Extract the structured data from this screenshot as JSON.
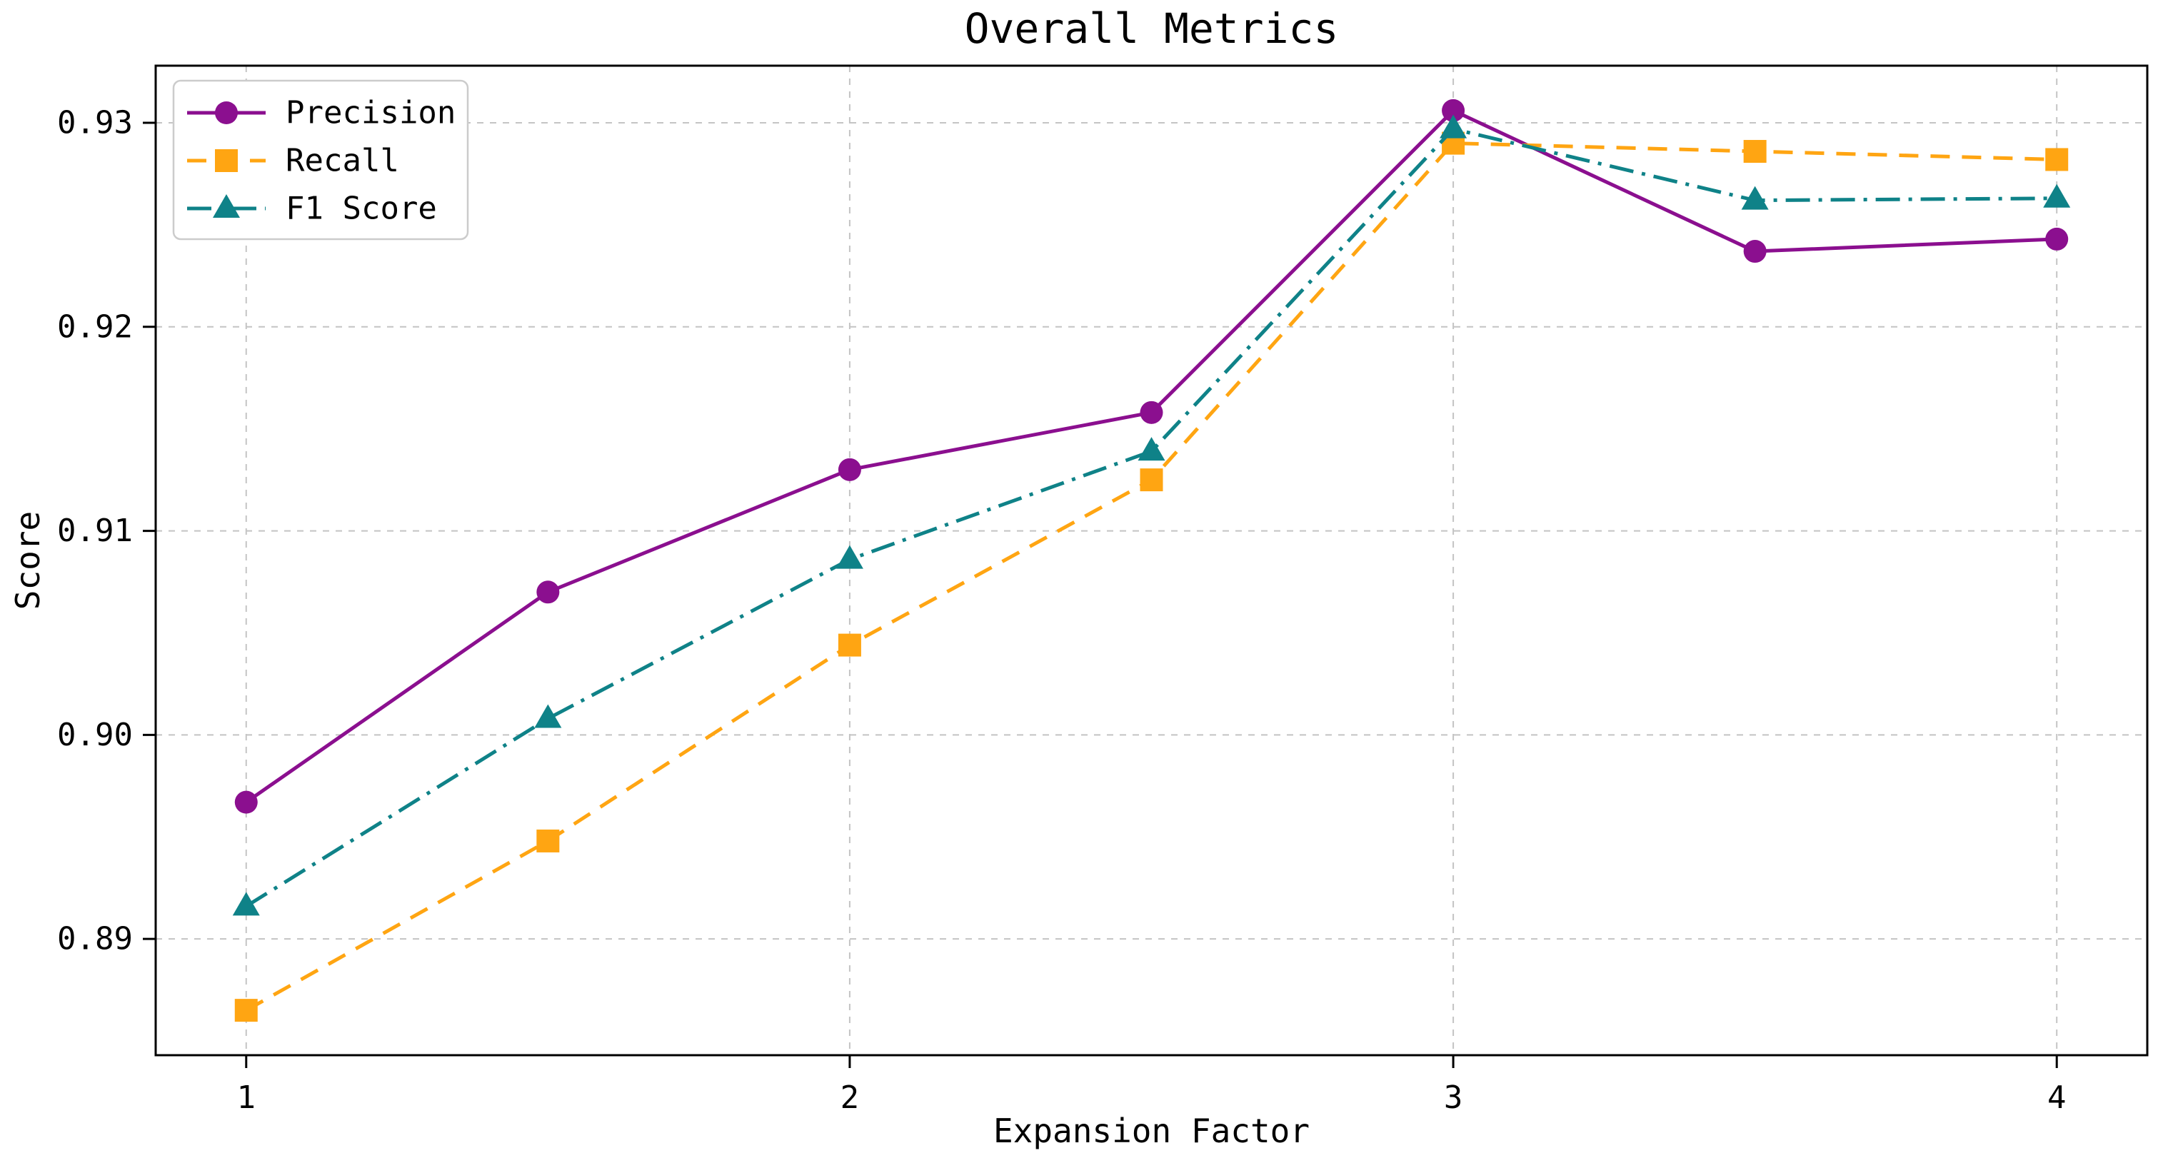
{
  "chart_data": {
    "type": "line",
    "title": "Overall Metrics",
    "xlabel": "Expansion Factor",
    "ylabel": "Score",
    "x": [
      1,
      1.5,
      2,
      2.5,
      3,
      3.5,
      4
    ],
    "x_tick_labels": [
      "1",
      "2",
      "3",
      "4"
    ],
    "x_ticks": [
      1,
      2,
      3,
      4
    ],
    "y_ticks": [
      0.89,
      0.9,
      0.91,
      0.92,
      0.93
    ],
    "y_tick_labels": [
      "0.89",
      "0.90",
      "0.91",
      "0.92",
      "0.93"
    ],
    "xlim": [
      0.85,
      4.15
    ],
    "ylim": [
      0.8843,
      0.9328
    ],
    "grid": true,
    "legend_position": "upper-left",
    "series": [
      {
        "name": "Precision",
        "color": "#8B0F8F",
        "marker": "circle",
        "line_style": "solid",
        "values": [
          0.8967,
          0.907,
          0.913,
          0.9158,
          0.9306,
          0.9237,
          0.9243
        ]
      },
      {
        "name": "Recall",
        "color": "#FFA512",
        "marker": "square",
        "line_style": "dashed",
        "values": [
          0.8865,
          0.8948,
          0.9044,
          0.9125,
          0.929,
          0.9286,
          0.9282
        ]
      },
      {
        "name": "F1 Score",
        "color": "#0F8288",
        "marker": "triangle",
        "line_style": "dashdot",
        "values": [
          0.8916,
          0.9008,
          0.9086,
          0.9139,
          0.9297,
          0.9262,
          0.9263
        ]
      }
    ],
    "colors": {
      "grid": "#c4c4c4",
      "spine": "#000000",
      "text": "#000000",
      "background": "#ffffff"
    }
  }
}
